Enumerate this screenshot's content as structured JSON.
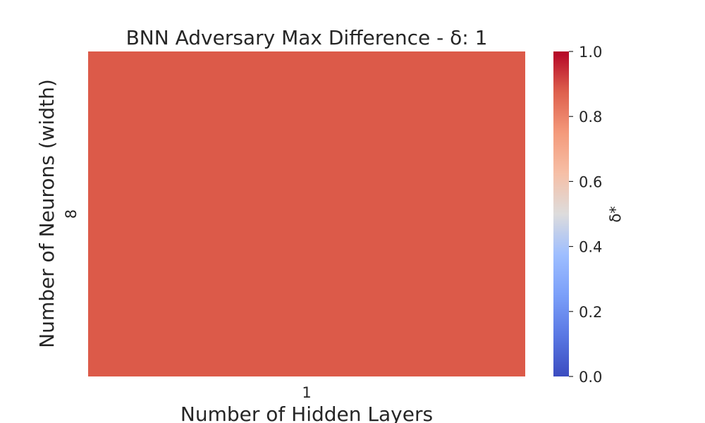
{
  "chart_data": {
    "type": "heatmap",
    "title": "BNN Adversary Max Difference - δ: 1",
    "xlabel": "Number of Hidden Layers",
    "ylabel": "Number of Neurons (width)",
    "x_categories": [
      "1"
    ],
    "y_categories": [
      "8"
    ],
    "values": [
      [
        0.88
      ]
    ],
    "colorbar": {
      "label": "δ*",
      "min": 0.0,
      "max": 1.0,
      "ticks": [
        "0.0",
        "0.2",
        "0.4",
        "0.6",
        "0.8",
        "1.0"
      ],
      "colormap": "coolwarm"
    },
    "colors": {
      "cell": "#dc5a49",
      "text": "#262626"
    },
    "grid": false,
    "legend": "colorbar-right"
  }
}
